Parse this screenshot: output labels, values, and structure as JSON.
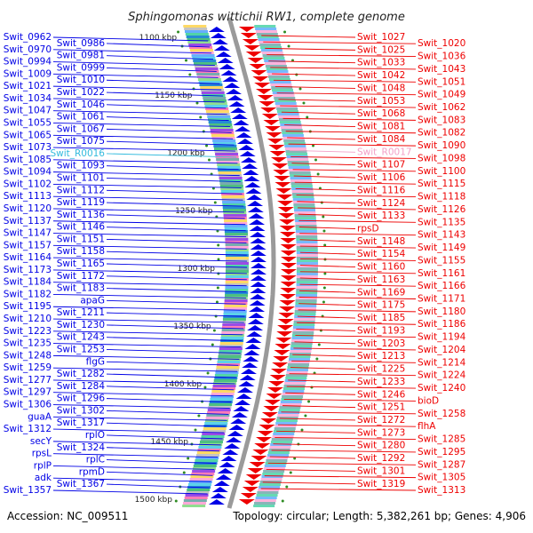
{
  "title": "Sphingomonas wittichii RW1, complete genome",
  "accession": "Accession: NC_009511",
  "summary": "Topology: circular; Length: 5,382,261 bp; Genes: 4,906",
  "colors": {
    "forward_strand": "#0000e6",
    "reverse_strand": "#ee0000",
    "rna_forward": "#33bbdd",
    "rna_reverse": "#f3a0c8",
    "backbone": "#9a9a9a",
    "tick_dot": "#2e8b22"
  },
  "scale_labels": [
    "1100 kbp",
    "1150 kbp",
    "1200 kbp",
    "1250 kbp",
    "1300 kbp",
    "1350 kbp",
    "1400 kbp",
    "1450 kbp",
    "1500 kbp"
  ],
  "left_labels": [
    "Swit_0962",
    "Swit_0986",
    "Swit_0970",
    "Swit_0981",
    "Swit_0994",
    "Swit_0999",
    "Swit_1009",
    "Swit_1010",
    "Swit_1021",
    "Swit_1022",
    "Swit_1034",
    "Swit_1046",
    "Swit_1047",
    "Swit_1061",
    "Swit_1055",
    "Swit_1067",
    "Swit_1065",
    "Swit_1075",
    "Swit_1073",
    "Swit_R0016",
    "Swit_1085",
    "Swit_1093",
    "Swit_1094",
    "Swit_1101",
    "Swit_1102",
    "Swit_1112",
    "Swit_1113",
    "Swit_1119",
    "Swit_1120",
    "Swit_1136",
    "Swit_1137",
    "Swit_1146",
    "Swit_1147",
    "Swit_1151",
    "Swit_1157",
    "Swit_1158",
    "Swit_1164",
    "Swit_1165",
    "Swit_1173",
    "Swit_1172",
    "Swit_1184",
    "Swit_1183",
    "Swit_1182",
    "apaG",
    "Swit_1195",
    "Swit_1211",
    "Swit_1210",
    "Swit_1230",
    "Swit_1223",
    "Swit_1243",
    "Swit_1235",
    "Swit_1253",
    "Swit_1248",
    "flgG",
    "Swit_1259",
    "Swit_1282",
    "Swit_1277",
    "Swit_1284",
    "Swit_1297",
    "Swit_1296",
    "Swit_1306",
    "Swit_1302",
    "guaA",
    "Swit_1317",
    "Swit_1312",
    "rplO",
    "secY",
    "Swit_1324",
    "rpsL",
    "rplC",
    "rplP",
    "rpmD",
    "adk",
    "Swit_1367",
    "Swit_1357"
  ],
  "right_labels": [
    "Swit_1027",
    "Swit_1020",
    "Swit_1025",
    "Swit_1036",
    "Swit_1033",
    "Swit_1043",
    "Swit_1042",
    "Swit_1051",
    "Swit_1048",
    "Swit_1049",
    "Swit_1053",
    "Swit_1062",
    "Swit_1068",
    "Swit_1083",
    "Swit_1081",
    "Swit_1082",
    "Swit_1084",
    "Swit_1090",
    "Swit_R0017",
    "Swit_1098",
    "Swit_1107",
    "Swit_1100",
    "Swit_1106",
    "Swit_1115",
    "Swit_1116",
    "Swit_1118",
    "Swit_1124",
    "Swit_1126",
    "Swit_1133",
    "Swit_1135",
    "rpsD",
    "Swit_1143",
    "Swit_1148",
    "Swit_1149",
    "Swit_1154",
    "Swit_1155",
    "Swit_1160",
    "Swit_1161",
    "Swit_1163",
    "Swit_1166",
    "Swit_1169",
    "Swit_1171",
    "Swit_1175",
    "Swit_1180",
    "Swit_1185",
    "Swit_1186",
    "Swit_1193",
    "Swit_1194",
    "Swit_1203",
    "Swit_1204",
    "Swit_1213",
    "Swit_1214",
    "Swit_1225",
    "Swit_1224",
    "Swit_1233",
    "Swit_1240",
    "Swit_1246",
    "bioD",
    "Swit_1251",
    "Swit_1258",
    "Swit_1272",
    "flhA",
    "Swit_1273",
    "Swit_1285",
    "Swit_1280",
    "Swit_1295",
    "Swit_1292",
    "Swit_1287",
    "Swit_1301",
    "Swit_1305",
    "Swit_1319",
    "Swit_1313"
  ]
}
